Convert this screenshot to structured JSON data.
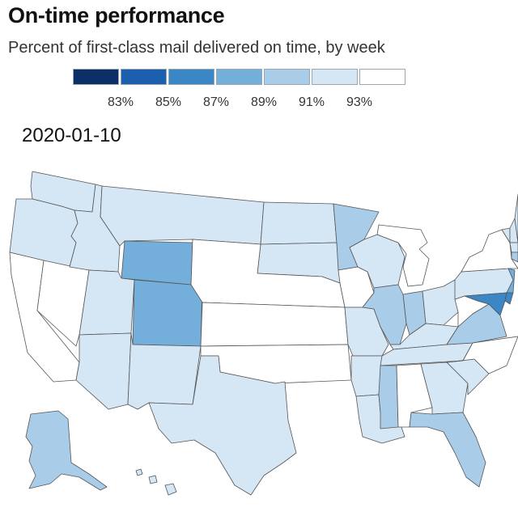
{
  "title": "On-time performance",
  "subtitle": "Percent of first-class mail delivered on time, by week",
  "date": "2020-01-10",
  "legend": {
    "colors": [
      "#0b2f66",
      "#1c5fae",
      "#3b87c6",
      "#74aedb",
      "#a9cde9",
      "#d5e6f5",
      "#ffffff"
    ],
    "ticks": [
      "83%",
      "85%",
      "87%",
      "89%",
      "91%",
      "93%"
    ]
  },
  "map_data": {
    "metric": "Percent of first-class mail delivered on time",
    "week": "2020-01-10",
    "states": [
      {
        "state": "WA",
        "bin": 5
      },
      {
        "state": "OR",
        "bin": 5
      },
      {
        "state": "CA",
        "bin": 6
      },
      {
        "state": "NV",
        "bin": 6
      },
      {
        "state": "ID",
        "bin": 5
      },
      {
        "state": "MT",
        "bin": 5
      },
      {
        "state": "WY",
        "bin": 3
      },
      {
        "state": "UT",
        "bin": 5
      },
      {
        "state": "CO",
        "bin": 3
      },
      {
        "state": "AZ",
        "bin": 5
      },
      {
        "state": "NM",
        "bin": 5
      },
      {
        "state": "ND",
        "bin": 5
      },
      {
        "state": "SD",
        "bin": 5
      },
      {
        "state": "NE",
        "bin": 6
      },
      {
        "state": "KS",
        "bin": 6
      },
      {
        "state": "OK",
        "bin": 6
      },
      {
        "state": "TX",
        "bin": 5
      },
      {
        "state": "MN",
        "bin": 4
      },
      {
        "state": "IA",
        "bin": 6
      },
      {
        "state": "MO",
        "bin": 5
      },
      {
        "state": "AR",
        "bin": 5
      },
      {
        "state": "LA",
        "bin": 5
      },
      {
        "state": "WI",
        "bin": 5
      },
      {
        "state": "IL",
        "bin": 4
      },
      {
        "state": "MI",
        "bin": 6
      },
      {
        "state": "IN",
        "bin": 4
      },
      {
        "state": "OH",
        "bin": 5
      },
      {
        "state": "KY",
        "bin": 5
      },
      {
        "state": "TN",
        "bin": 5
      },
      {
        "state": "MS",
        "bin": 4
      },
      {
        "state": "AL",
        "bin": 6
      },
      {
        "state": "GA",
        "bin": 5
      },
      {
        "state": "FL",
        "bin": 4
      },
      {
        "state": "SC",
        "bin": 5
      },
      {
        "state": "NC",
        "bin": 6
      },
      {
        "state": "VA",
        "bin": 4
      },
      {
        "state": "WV",
        "bin": 6
      },
      {
        "state": "PA",
        "bin": 5
      },
      {
        "state": "NY",
        "bin": 6
      },
      {
        "state": "VT",
        "bin": 5
      },
      {
        "state": "NH",
        "bin": 5
      },
      {
        "state": "ME",
        "bin": 5
      },
      {
        "state": "MA",
        "bin": 5
      },
      {
        "state": "CT",
        "bin": 4
      },
      {
        "state": "RI",
        "bin": 5
      },
      {
        "state": "NJ",
        "bin": 3
      },
      {
        "state": "DE",
        "bin": 2
      },
      {
        "state": "MD",
        "bin": 2
      },
      {
        "state": "AK",
        "bin": 4
      },
      {
        "state": "HI",
        "bin": 5
      }
    ]
  }
}
